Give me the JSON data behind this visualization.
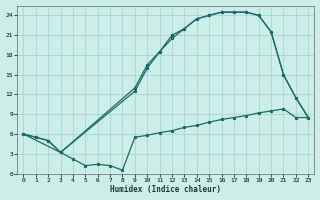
{
  "xlabel": "Humidex (Indice chaleur)",
  "bg_color": "#cceee8",
  "grid_color": "#aad4ce",
  "line_color": "#1a6b6b",
  "xlim": [
    -0.5,
    23.5
  ],
  "ylim": [
    0,
    25.5
  ],
  "xticks": [
    0,
    1,
    2,
    3,
    4,
    5,
    6,
    7,
    8,
    9,
    10,
    11,
    12,
    13,
    14,
    15,
    16,
    17,
    18,
    19,
    20,
    21,
    22,
    23
  ],
  "yticks": [
    0,
    3,
    6,
    9,
    12,
    15,
    18,
    21,
    24
  ],
  "line1_x": [
    0,
    1,
    2,
    3,
    4,
    5,
    6,
    7,
    8,
    9,
    10,
    11,
    12,
    13,
    14,
    15,
    16,
    17,
    18,
    19,
    20,
    21,
    22,
    23
  ],
  "line1_y": [
    6.0,
    5.5,
    5.0,
    3.2,
    2.2,
    1.2,
    1.4,
    1.2,
    0.5,
    5.5,
    5.8,
    6.2,
    6.5,
    7.0,
    7.3,
    7.8,
    8.2,
    8.5,
    8.8,
    9.2,
    9.5,
    9.8,
    8.5,
    8.5
  ],
  "line2_x": [
    0,
    1,
    2,
    3,
    9,
    10,
    11,
    12,
    13,
    14,
    15,
    16,
    17,
    18,
    19,
    20,
    21,
    22,
    23
  ],
  "line2_y": [
    6.0,
    5.5,
    5.0,
    3.2,
    13.0,
    16.5,
    18.5,
    20.5,
    22.0,
    23.5,
    24.0,
    24.5,
    24.5,
    24.5,
    24.0,
    21.5,
    15.0,
    11.5,
    8.5
  ],
  "line3_x": [
    0,
    3,
    9,
    10,
    11,
    12,
    13,
    14,
    15,
    16,
    17,
    18,
    19,
    20,
    21,
    22,
    23
  ],
  "line3_y": [
    6.0,
    3.2,
    12.5,
    16.0,
    18.5,
    21.0,
    22.0,
    23.5,
    24.0,
    24.5,
    24.5,
    24.5,
    24.0,
    21.5,
    15.0,
    11.5,
    8.5
  ]
}
